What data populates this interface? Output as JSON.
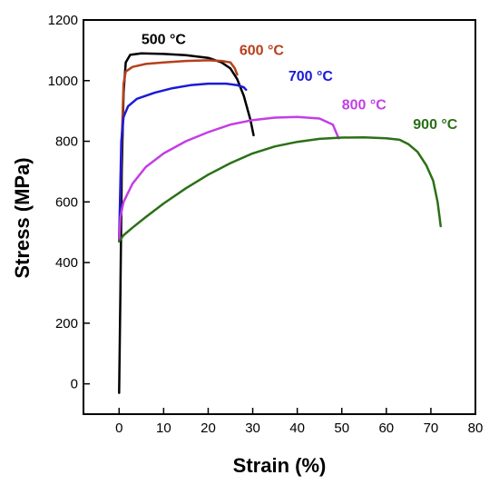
{
  "chart_data": {
    "type": "line",
    "title": "",
    "xlabel": "Strain (%)",
    "ylabel": "Stress (MPa)",
    "xlim": [
      -8,
      80
    ],
    "ylim": [
      -100,
      1200
    ],
    "xticks": [
      0,
      10,
      20,
      30,
      40,
      50,
      60,
      70,
      80
    ],
    "yticks": [
      0,
      200,
      400,
      600,
      800,
      1000,
      1200
    ],
    "grid": false,
    "legend": "inline labels",
    "series": [
      {
        "name": "500 °C",
        "color": "#000000",
        "label_at": [
          5,
          1120
        ],
        "points": [
          [
            0,
            -30
          ],
          [
            0.3,
            300
          ],
          [
            0.6,
            700
          ],
          [
            1.0,
            960
          ],
          [
            1.5,
            1060
          ],
          [
            2.5,
            1085
          ],
          [
            5,
            1090
          ],
          [
            10,
            1088
          ],
          [
            15,
            1084
          ],
          [
            20,
            1075
          ],
          [
            23,
            1060
          ],
          [
            25,
            1040
          ],
          [
            26.5,
            1005
          ],
          [
            28,
            950
          ],
          [
            29.5,
            870
          ],
          [
            30.2,
            820
          ]
        ]
      },
      {
        "name": "600 °C",
        "color": "#b5401c",
        "label_at": [
          27,
          1085
        ],
        "points": [
          [
            0,
            470
          ],
          [
            0.6,
            800
          ],
          [
            1.0,
            990
          ],
          [
            1.5,
            1030
          ],
          [
            3,
            1045
          ],
          [
            6,
            1055
          ],
          [
            10,
            1060
          ],
          [
            15,
            1065
          ],
          [
            20,
            1067
          ],
          [
            23,
            1065
          ],
          [
            25,
            1060
          ],
          [
            26,
            1040
          ],
          [
            26.5,
            1020
          ]
        ]
      },
      {
        "name": "700 °C",
        "color": "#1a1ad8",
        "label_at": [
          38,
          1000
        ],
        "points": [
          [
            0,
            470
          ],
          [
            0.5,
            800
          ],
          [
            1,
            880
          ],
          [
            2,
            915
          ],
          [
            4,
            940
          ],
          [
            8,
            960
          ],
          [
            12,
            975
          ],
          [
            16,
            985
          ],
          [
            20,
            990
          ],
          [
            24,
            990
          ],
          [
            26.5,
            985
          ],
          [
            28,
            978
          ],
          [
            28.5,
            970
          ]
        ]
      },
      {
        "name": "800 °C",
        "color": "#c43de6",
        "label_at": [
          50,
          905
        ],
        "points": [
          [
            0,
            470
          ],
          [
            0.3,
            550
          ],
          [
            1,
            600
          ],
          [
            3,
            660
          ],
          [
            6,
            715
          ],
          [
            10,
            760
          ],
          [
            15,
            800
          ],
          [
            20,
            830
          ],
          [
            25,
            855
          ],
          [
            30,
            870
          ],
          [
            35,
            878
          ],
          [
            40,
            880
          ],
          [
            45,
            875
          ],
          [
            48,
            855
          ],
          [
            49,
            820
          ],
          [
            49.3,
            810
          ]
        ]
      },
      {
        "name": "900 °C",
        "color": "#2b7016",
        "label_at": [
          66,
          840
        ],
        "points": [
          [
            0,
            470
          ],
          [
            1,
            490
          ],
          [
            3,
            515
          ],
          [
            6,
            550
          ],
          [
            10,
            595
          ],
          [
            15,
            645
          ],
          [
            20,
            690
          ],
          [
            25,
            728
          ],
          [
            30,
            760
          ],
          [
            35,
            783
          ],
          [
            40,
            798
          ],
          [
            45,
            808
          ],
          [
            50,
            812
          ],
          [
            55,
            813
          ],
          [
            60,
            810
          ],
          [
            63,
            805
          ],
          [
            65,
            790
          ],
          [
            67,
            765
          ],
          [
            69,
            720
          ],
          [
            70.5,
            670
          ],
          [
            71.5,
            600
          ],
          [
            72,
            545
          ],
          [
            72.2,
            520
          ]
        ]
      }
    ]
  }
}
